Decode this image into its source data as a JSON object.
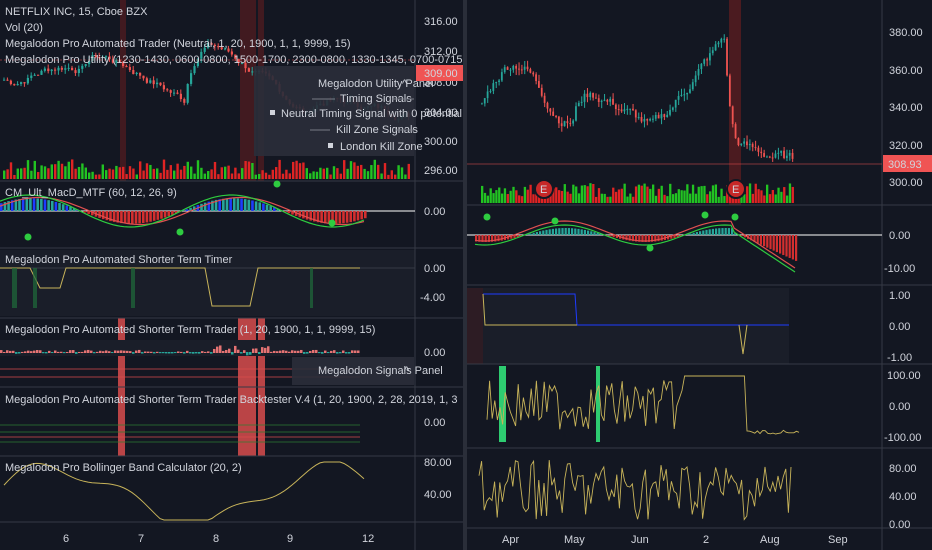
{
  "colors": {
    "bg": "#131722",
    "up": "#26a69a",
    "down": "#ef5350",
    "vol_up": "#22c322",
    "vol_down": "#e02424",
    "macd_line": "#2ecc40",
    "signal_line": "#e05050",
    "yellow": "#c8b45a",
    "blue": "#1e3cff",
    "price_badge": "#f05454",
    "marker_e": "#c62828"
  },
  "left_chart": {
    "symbol_line": "NETFLIX INC, 15, Cboe BZX",
    "vol_line": "Vol (20)",
    "trader_line": "Megalodon Pro Automated Trader (Neutral, 1, 20, 1900, 1, 1, 9999, 15)",
    "utility_line": "Megalodon Pro Utility (1230-1430, 0600-0800, 1500-1700, 2300-0800, 1330-1345, 0700-0715,",
    "price_badge": "309.00",
    "price_ticks": [
      "316.00",
      "312.00",
      "308.00",
      "304.00",
      "300.00",
      "296.00"
    ],
    "utility_panel": {
      "title": "Megalodon Utility Panel",
      "timing_header": "Timing Signals",
      "timing_item": "Neutral Timing Signal with 0 potential re",
      "kill_header": "Kill Zone Signals",
      "kill_item": "London Kill Zone"
    },
    "macd": {
      "title": "CM_Ult_MacD_MTF (60, 12, 26, 9)",
      "ticks": [
        "0.00"
      ]
    },
    "timer": {
      "title": "Megalodon Pro Automated Shorter Term Timer",
      "ticks": [
        "0.00",
        "-4.00"
      ]
    },
    "st_trader": {
      "title": "Megalodon Pro Automated Shorter Term Trader (1, 20, 1900, 1, 1, 9999, 15)",
      "ticks": [
        "0.00"
      ],
      "signals_panel": "Megalodon Signals Panel"
    },
    "backtester": {
      "title": "Megalodon Pro Automated Shorter Term Trader Backtester V.4 (1, 20, 1900, 2, 28, 2019, 1, 3",
      "ticks": [
        "0.00"
      ]
    },
    "bollinger": {
      "title": "Megalodon Pro Bollinger Band Calculator (20, 2)",
      "ticks": [
        "80.00",
        "40.00"
      ]
    },
    "x_ticks": [
      "6",
      "7",
      "8",
      "9",
      "12"
    ]
  },
  "right_chart": {
    "price_ticks": [
      "380.00",
      "360.00",
      "340.00",
      "320.00",
      "300.00"
    ],
    "price_badge": "308.93",
    "earnings_marker": "E",
    "macd_ticks": [
      "0.00",
      "-10.00"
    ],
    "timer_ticks": [
      "1.00",
      "0.00",
      "-1.00"
    ],
    "trader_ticks": [
      "100.00",
      "0.00",
      "-100.00"
    ],
    "bollinger_ticks": [
      "80.00",
      "40.00",
      "0.00"
    ],
    "x_ticks": [
      "Apr",
      "May",
      "Jun",
      "2",
      "Aug",
      "Sep"
    ]
  }
}
